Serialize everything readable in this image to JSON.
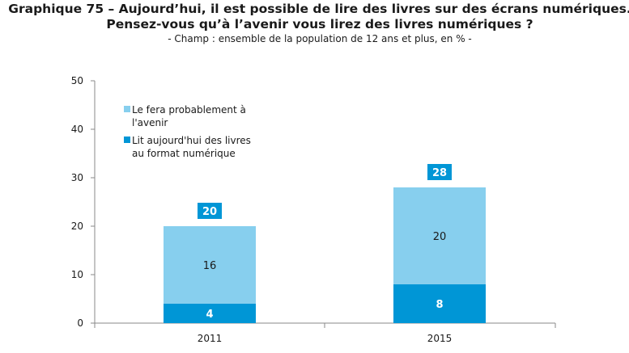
{
  "header": {
    "title_line1": "Graphique 75 – Aujourd’hui, il est possible de lire des livres sur des écrans numériques.",
    "title_line2": "Pensez-vous qu’à l’avenir vous lirez des livres numériques ?",
    "subtitle": "- Champ : ensemble de la population de 12 ans et plus, en % -"
  },
  "chart_data": {
    "type": "bar",
    "stacked": true,
    "categories": [
      "2011",
      "2015"
    ],
    "series": [
      {
        "name": "Lit aujourd'hui des livres au format numérique",
        "values": [
          4,
          8
        ],
        "color": "#0096d6"
      },
      {
        "name": "Le fera probablement à l'avenir",
        "values": [
          16,
          20
        ],
        "color": "#87cfee"
      }
    ],
    "totals": [
      20,
      28
    ],
    "ylim": [
      0,
      50
    ],
    "yticks": [
      0,
      10,
      20,
      30,
      40,
      50
    ],
    "legend_lines": [
      [
        "Le fera probablement à",
        "l'avenir"
      ],
      [
        "Lit aujourd'hui des livres",
        "au format numérique"
      ]
    ],
    "legend_position": "upper-left",
    "grid": false
  }
}
